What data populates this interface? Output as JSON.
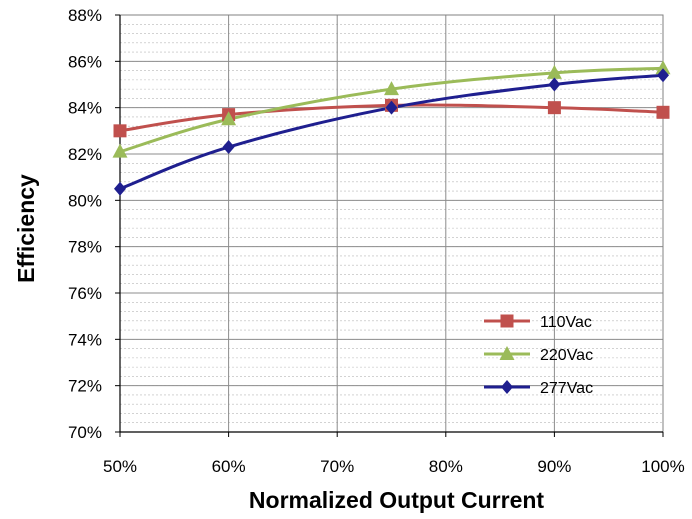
{
  "chart_data": {
    "type": "line",
    "title": "",
    "xlabel": "Normalized Output Current",
    "ylabel": "Efficiency",
    "x": [
      50,
      60,
      75,
      90,
      100
    ],
    "xlim": [
      50,
      100
    ],
    "ylim": [
      70,
      88
    ],
    "x_ticks": [
      "50%",
      "60%",
      "70%",
      "80%",
      "90%",
      "100%"
    ],
    "y_ticks": [
      "70%",
      "72%",
      "74%",
      "76%",
      "78%",
      "80%",
      "82%",
      "84%",
      "86%",
      "88%"
    ],
    "grid": true,
    "legend_position": "bottom-right",
    "series": [
      {
        "name": "110Vac",
        "color": "#C0504D",
        "marker": "square",
        "values": [
          83.0,
          83.7,
          84.1,
          84.0,
          83.8
        ]
      },
      {
        "name": "220Vac",
        "color": "#9BBB59",
        "marker": "triangle",
        "values": [
          82.1,
          83.5,
          84.8,
          85.5,
          85.7
        ]
      },
      {
        "name": "277Vac",
        "color": "#1F1F8F",
        "marker": "diamond",
        "values": [
          80.5,
          82.3,
          84.0,
          85.0,
          85.4
        ]
      }
    ]
  }
}
